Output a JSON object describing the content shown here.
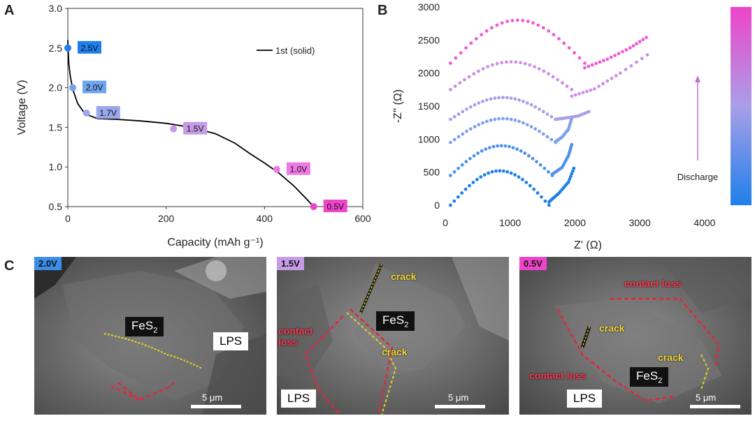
{
  "panels": {
    "a": "A",
    "b": "B",
    "c": "C"
  },
  "chart_data": [
    {
      "type": "line",
      "xlabel": "Capacity (mAh g⁻¹)",
      "ylabel": "Voltage (V)",
      "xlim": [
        0,
        600
      ],
      "ylim": [
        0.5,
        3.0
      ],
      "xticks": [
        0,
        200,
        400,
        600
      ],
      "yticks": [
        0.5,
        1.0,
        1.5,
        2.0,
        2.5,
        3.0
      ],
      "legend": "top-right",
      "series": [
        {
          "name": "1st (solid)",
          "color": "#000000",
          "x": [
            0,
            2,
            5,
            10,
            20,
            35,
            60,
            100,
            150,
            200,
            250,
            300,
            340,
            370,
            400,
            430,
            460,
            485,
            500
          ],
          "y": [
            2.6,
            2.3,
            2.15,
            1.98,
            1.8,
            1.67,
            1.61,
            1.6,
            1.58,
            1.55,
            1.5,
            1.42,
            1.3,
            1.17,
            1.05,
            0.92,
            0.76,
            0.6,
            0.5
          ]
        }
      ],
      "markers": [
        {
          "label": "2.5V",
          "x": 0,
          "y": 2.5,
          "color": "#1f7fea"
        },
        {
          "label": "2.0V",
          "x": 10,
          "y": 2.0,
          "color": "#6ea5ee"
        },
        {
          "label": "1.7V",
          "x": 38,
          "y": 1.68,
          "color": "#9aa7ea"
        },
        {
          "label": "1.5V",
          "x": 215,
          "y": 1.48,
          "color": "#c59be6"
        },
        {
          "label": "1.0V",
          "x": 425,
          "y": 0.97,
          "color": "#ed7ae3"
        },
        {
          "label": "0.5V",
          "x": 500,
          "y": 0.5,
          "color": "#ee44c9"
        }
      ]
    },
    {
      "type": "scatter",
      "xlabel": "Z' (Ω)",
      "ylabel": "-Z'' (Ω)",
      "xlim": [
        0,
        4400
      ],
      "ylim": [
        0,
        3000
      ],
      "xticks": [
        0,
        1000,
        2000,
        3000,
        4000
      ],
      "yticks": [
        0,
        500,
        1000,
        1500,
        2000,
        2500,
        3000
      ],
      "colorbar_label": "Discharge",
      "series": [
        {
          "color": "#1f7fea",
          "offset": 0,
          "arc_start": 80,
          "arc_end": 1600,
          "arc_peak": 520,
          "tail": [
            [
              1600,
              50
            ],
            [
              1750,
              180
            ],
            [
              1900,
              350
            ],
            [
              2000,
              600
            ]
          ]
        },
        {
          "color": "#4f92ec",
          "offset": 450,
          "arc_start": 80,
          "arc_end": 1650,
          "arc_peak": 450,
          "tail": [
            [
              1650,
              20
            ],
            [
              1800,
              120
            ],
            [
              1900,
              300
            ],
            [
              1960,
              500
            ]
          ]
        },
        {
          "color": "#7fa2ec",
          "offset": 950,
          "arc_start": 80,
          "arc_end": 1700,
          "arc_peak": 360,
          "tail": [
            [
              1700,
              10
            ],
            [
              1800,
              80
            ],
            [
              1900,
              200
            ],
            [
              1960,
              400
            ]
          ]
        },
        {
          "color": "#a99fe8",
          "offset": 1300,
          "arc_start": 80,
          "arc_end": 1700,
          "arc_peak": 330,
          "tail": [
            [
              1700,
              0
            ],
            [
              1850,
              20
            ],
            [
              2050,
              50
            ],
            [
              2250,
              130
            ]
          ]
        },
        {
          "color": "#cf8fe6",
          "offset": 1750,
          "arc_start": 80,
          "arc_end": 1950,
          "arc_peak": 420,
          "tail": [
            [
              1950,
              -100
            ],
            [
              2300,
              10
            ],
            [
              2700,
              250
            ],
            [
              3200,
              580
            ]
          ]
        },
        {
          "color": "#ee5cd3",
          "offset": 2150,
          "arc_start": 80,
          "arc_end": 2150,
          "arc_peak": 650,
          "tail": [
            [
              2150,
              -70
            ],
            [
              2500,
              60
            ],
            [
              2850,
              230
            ],
            [
              3150,
              420
            ]
          ]
        }
      ]
    }
  ],
  "sem_images": [
    {
      "voltage": "2.0V",
      "label_color": "#3a8eea",
      "labels": {
        "fes2": "FeS",
        "fes2_sub": "2",
        "lps": "LPS"
      },
      "scale": "5 μm"
    },
    {
      "voltage": "1.5V",
      "label_color": "#c59be6",
      "labels": {
        "fes2": "FeS",
        "fes2_sub": "2",
        "lps": "LPS",
        "crack1": "crack",
        "crack2": "crack",
        "contact": "contact\nloss"
      },
      "scale": "5 μm"
    },
    {
      "voltage": "0.5V",
      "label_color": "#ee44c9",
      "labels": {
        "fes2": "FeS",
        "fes2_sub": "2",
        "lps": "LPS",
        "crack1": "crack",
        "crack2": "crack",
        "contact1": "contact loss",
        "contact2": "contact loss"
      },
      "scale": "5 μm"
    }
  ]
}
